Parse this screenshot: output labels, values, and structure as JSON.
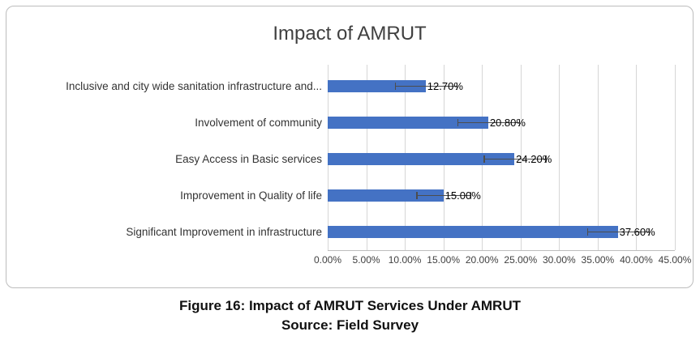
{
  "chart_data": {
    "type": "bar",
    "orientation": "horizontal",
    "title": "Impact of AMRUT",
    "categories": [
      "Inclusive and city wide sanitation infrastructure and...",
      "Involvement of community",
      "Easy Access in Basic services",
      "Improvement in Quality of life",
      "Significant Improvement in infrastructure"
    ],
    "values": [
      12.7,
      20.8,
      24.2,
      15.0,
      37.6
    ],
    "value_labels": [
      "12.70%",
      "20.80%",
      "24.20%",
      "15.00%",
      "37.60%"
    ],
    "error_bars": [
      4.0,
      4.0,
      4.0,
      3.5,
      4.0
    ],
    "xlim": [
      0,
      45
    ],
    "x_ticks": [
      "0.00%",
      "5.00%",
      "10.00%",
      "15.00%",
      "20.00%",
      "25.00%",
      "30.00%",
      "35.00%",
      "40.00%",
      "45.00%"
    ],
    "xlabel": "",
    "ylabel": "",
    "legend_position": "none",
    "grid": "vertical",
    "bar_color": "#4472C4",
    "gridline_color": "#D6D6D6",
    "error_bar_color": "#4D4D4D"
  },
  "caption": {
    "line1": "Figure 16: Impact of AMRUT Services Under AMRUT",
    "line2": "Source: Field Survey"
  }
}
